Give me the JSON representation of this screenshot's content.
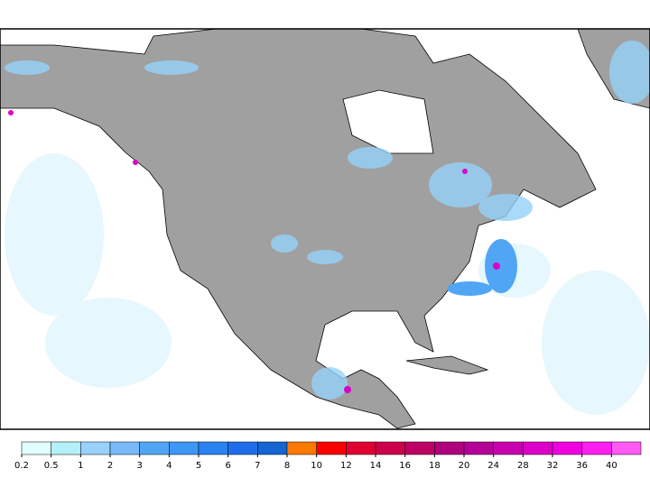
{
  "colorbar": {
    "levels": [
      0.2,
      0.5,
      1,
      2,
      3,
      4,
      5,
      6,
      7,
      8,
      10,
      12,
      14,
      16,
      18,
      20,
      24,
      28,
      32,
      36,
      40
    ],
    "colors": [
      "#e1ffff",
      "#b4f0fa",
      "#96d2fa",
      "#78b9fa",
      "#50a5f5",
      "#3c97f5",
      "#2882f0",
      "#1e6eeb",
      "#1464d2",
      "#ff7800",
      "#fa0000",
      "#e10032",
      "#cd004b",
      "#be0064",
      "#af007d",
      "#b40096",
      "#c800af",
      "#dc00c8",
      "#f000e1",
      "#ff1ef0",
      "#ff5af5"
    ]
  }
}
